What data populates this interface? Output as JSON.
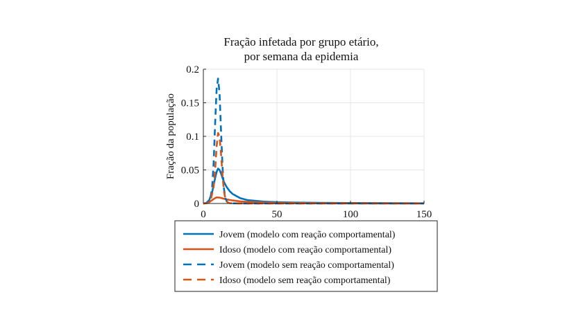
{
  "chart_data": {
    "type": "line",
    "title": [
      "Fração infetada por grupo etário,",
      "por semana da epidemia"
    ],
    "xlabel": "",
    "ylabel": "Fração da população",
    "xlim": [
      0,
      150
    ],
    "ylim": [
      0,
      0.2
    ],
    "xticks": [
      0,
      50,
      100,
      150
    ],
    "xtick_labels": [
      "0",
      "50",
      "100",
      "150"
    ],
    "yticks": [
      0,
      0.05,
      0.1,
      0.15,
      0.2
    ],
    "ytick_labels": [
      "0",
      "0.05",
      "0.1",
      "0.15",
      "0.2"
    ],
    "grid": true,
    "legend_position": "bottom-outside",
    "series": [
      {
        "name": "Jovem (modelo com reação comportamental)",
        "color": "#0072BD",
        "dash": "solid",
        "x": [
          0,
          2,
          4,
          6,
          8,
          9,
          10,
          11,
          12,
          13,
          14,
          16,
          18,
          20,
          25,
          30,
          40,
          50,
          60,
          80,
          100,
          150
        ],
        "y": [
          0,
          0.0008,
          0.005,
          0.017,
          0.038,
          0.047,
          0.052,
          0.05,
          0.045,
          0.038,
          0.032,
          0.024,
          0.018,
          0.014,
          0.008,
          0.005,
          0.003,
          0.002,
          0.0015,
          0.001,
          0.0007,
          0.0003
        ]
      },
      {
        "name": "Idoso (modelo com reação comportamental)",
        "color": "#D95319",
        "dash": "solid",
        "x": [
          0,
          2,
          4,
          6,
          8,
          9,
          10,
          11,
          12,
          14,
          16,
          20,
          25,
          30,
          40,
          50,
          80,
          100,
          150
        ],
        "y": [
          0,
          0.0003,
          0.002,
          0.005,
          0.008,
          0.009,
          0.009,
          0.0088,
          0.0082,
          0.007,
          0.006,
          0.0045,
          0.0032,
          0.0024,
          0.0015,
          0.001,
          0.0005,
          0.0003,
          0.0001
        ]
      },
      {
        "name": "Jovem (modelo sem reação comportamental)",
        "color": "#0072BD",
        "dash": "dashed",
        "x": [
          0,
          3,
          5,
          6,
          7,
          8,
          9,
          10,
          11,
          12,
          13,
          14,
          15,
          16,
          17,
          18,
          20,
          25,
          30,
          50,
          150
        ],
        "y": [
          0,
          0.001,
          0.01,
          0.025,
          0.06,
          0.12,
          0.17,
          0.186,
          0.165,
          0.11,
          0.055,
          0.022,
          0.008,
          0.003,
          0.0012,
          0.0005,
          0.0002,
          0.0001,
          0,
          0,
          0
        ]
      },
      {
        "name": "Idoso (modelo sem reação comportamental)",
        "color": "#D95319",
        "dash": "dashed",
        "x": [
          0,
          3,
          5,
          7,
          8,
          9,
          10,
          11,
          12,
          13,
          14,
          15,
          16,
          17,
          18,
          20,
          25,
          30,
          50,
          150
        ],
        "y": [
          0,
          0.0005,
          0.005,
          0.025,
          0.05,
          0.085,
          0.105,
          0.1,
          0.075,
          0.042,
          0.018,
          0.007,
          0.0025,
          0.001,
          0.0005,
          0.0002,
          0.0001,
          0,
          0,
          0
        ]
      }
    ]
  }
}
